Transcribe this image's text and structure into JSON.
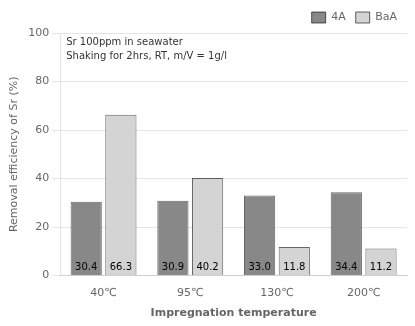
{
  "chart_data": {
    "type": "bar",
    "categories": [
      "40℃",
      "95℃",
      "130℃",
      "200℃"
    ],
    "series": [
      {
        "name": "4A",
        "color": "#888888",
        "values": [
          30.4,
          30.9,
          33.0,
          34.4
        ],
        "value_labels": [
          "30.4",
          "30.9",
          "33.0",
          "34.4"
        ]
      },
      {
        "name": "BaA",
        "color": "#d4d4d4",
        "values": [
          66.3,
          40.2,
          11.8,
          11.2
        ]
      }
    ],
    "xlabel": "Impregnation temperature",
    "ylabel": "Removal efficiency of Sr (%)",
    "ylim": [
      0,
      100
    ],
    "yticks": [
      0,
      20,
      40,
      60,
      80,
      100
    ],
    "grid": true,
    "legend": "upper right",
    "data_labels": true,
    "annotations": [
      "Sr 100ppm in seawater",
      "Shaking for 2hrs, RT, m/V = 1g/l"
    ]
  }
}
